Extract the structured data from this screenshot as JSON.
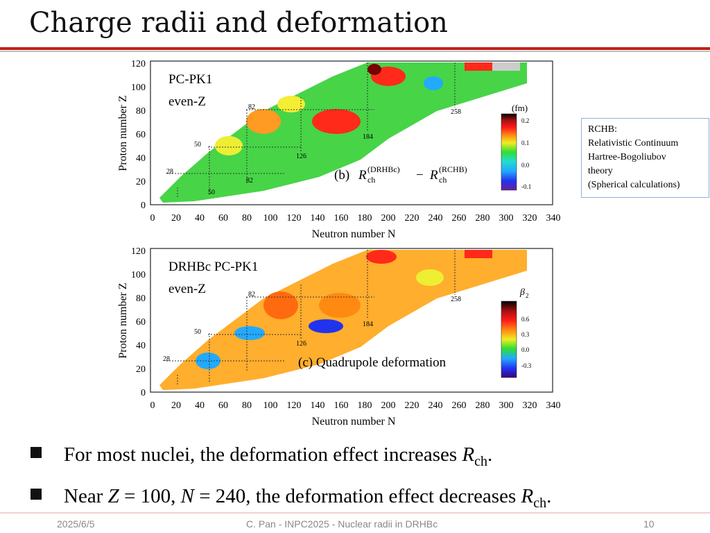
{
  "slide": {
    "title": "Charge radii and deformation",
    "accent_color": "#c0201a"
  },
  "panel_b": {
    "model": "PC-PK1",
    "even_z": "even-Z",
    "label": "(b)",
    "r_text": "R",
    "ch": "ch",
    "drhbc_sup": "(DRHBc)",
    "rchb_sup": "(RCHB)",
    "minus": "−",
    "colorbar_unit": "(fm)",
    "colorbar_ticks": [
      "0.2",
      "0.1",
      "0.0",
      "-0.1"
    ],
    "magic_n": [
      "28",
      "50",
      "82",
      "126",
      "184",
      "258"
    ],
    "magic_z": [
      "28",
      "50",
      "82"
    ],
    "y_ticks": [
      "0",
      "20",
      "40",
      "60",
      "80",
      "100",
      "120"
    ],
    "x_ticks": [
      "0",
      "20",
      "40",
      "60",
      "80",
      "100",
      "120",
      "140",
      "160",
      "180",
      "200",
      "220",
      "240",
      "260",
      "280",
      "300",
      "320",
      "340"
    ],
    "y_axis_label": "Proton number Z",
    "x_axis_label": "Neutron number N"
  },
  "panel_c": {
    "model": "DRHBc  PC-PK1",
    "even_z": "even-Z",
    "caption": "(c)  Quadrupole deformation",
    "colorbar_symbol": "β",
    "colorbar_sub": "2",
    "colorbar_ticks": [
      "0.6",
      "0.3",
      "0.0",
      "-0.3"
    ],
    "magic_n": [
      "28",
      "50",
      "82",
      "126",
      "184",
      "258"
    ],
    "y_ticks": [
      "0",
      "20",
      "40",
      "60",
      "80",
      "100",
      "120"
    ],
    "x_ticks": [
      "0",
      "20",
      "40",
      "60",
      "80",
      "100",
      "120",
      "140",
      "160",
      "180",
      "200",
      "220",
      "240",
      "260",
      "280",
      "300",
      "320",
      "340"
    ],
    "y_axis_label": "Proton number Z",
    "x_axis_label": "Neutron number N"
  },
  "note": {
    "lines": [
      "RCHB:",
      "Relativistic Continuum",
      "Hartree-Bogoliubov",
      "theory",
      "(Spherical calculations)"
    ]
  },
  "bullets": [
    {
      "text": "For most nuclei, the deformation effect increases ",
      "r": "R",
      "sub": "ch",
      "end": "."
    },
    {
      "pre1": "Near ",
      "z": "Z",
      "mid1": " = 100, ",
      "n": "N",
      "mid2": " = 240, the deformation effect decreases ",
      "r": "R",
      "sub": "ch",
      "end": "."
    }
  ],
  "footer": {
    "date": "2025/6/5",
    "center": "C. Pan - INPC2025 - Nuclear radii in DRHBc",
    "page": "10"
  }
}
